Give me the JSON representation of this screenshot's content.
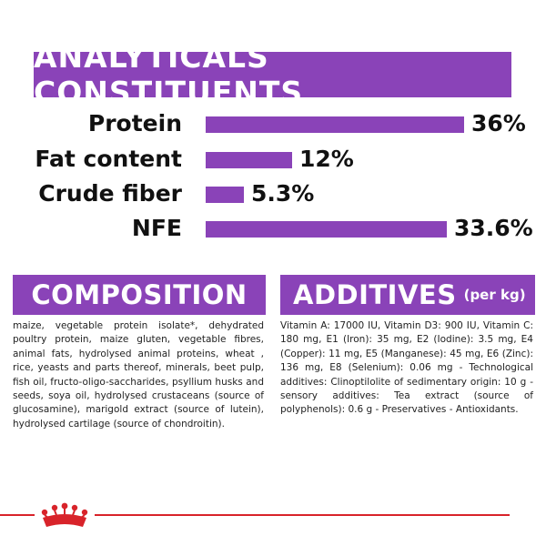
{
  "header": {
    "title": "ANALYTICALS CONSTITUENTS"
  },
  "analytics": [
    {
      "label": "Protein",
      "value_label": "36%",
      "value": 36
    },
    {
      "label": "Fat content",
      "value_label": "12%",
      "value": 12
    },
    {
      "label": "Crude fiber",
      "value_label": "5.3%",
      "value": 5.3
    },
    {
      "label": "NFE",
      "value_label": "33.6%",
      "value": 33.6
    }
  ],
  "composition": {
    "title": "COMPOSITION",
    "text": "maize, vegetable protein isolate*, dehydrated poultry protein, maize gluten, vegetable fibres, animal fats, hydrolysed animal proteins, wheat , rice, yeasts and parts thereof, minerals, beet pulp, fish oil, fructo-oligo-saccharides, psyllium husks and seeds, soya oil, hydrolysed crustaceans (source of glucosamine), marigold extract (source of lutein), hydrolysed cartilage (source of chondroitin)."
  },
  "additives": {
    "title": "ADDITIVES",
    "subtitle": "(per kg)",
    "text": "Vitamin A: 17000 IU, Vitamin D3: 900 IU, Vitamin C: 180 mg, E1 (Iron): 35 mg, E2 (Iodine): 3.5 mg, E4 (Copper): 11 mg, E5 (Manganese): 45 mg, E6 (Zinc): 136 mg, E8 (Selenium): 0.06 mg - Technological additives: Clinoptilolite of sedimentary origin: 10 g - sensory additives: Tea extract (source of polyphenols): 0.6 g - Preservatives - Antioxidants."
  },
  "colors": {
    "accent": "#8a43b8",
    "brand_red": "#d8232a"
  },
  "footer": {
    "logo": "royal-canin-crown-icon"
  }
}
